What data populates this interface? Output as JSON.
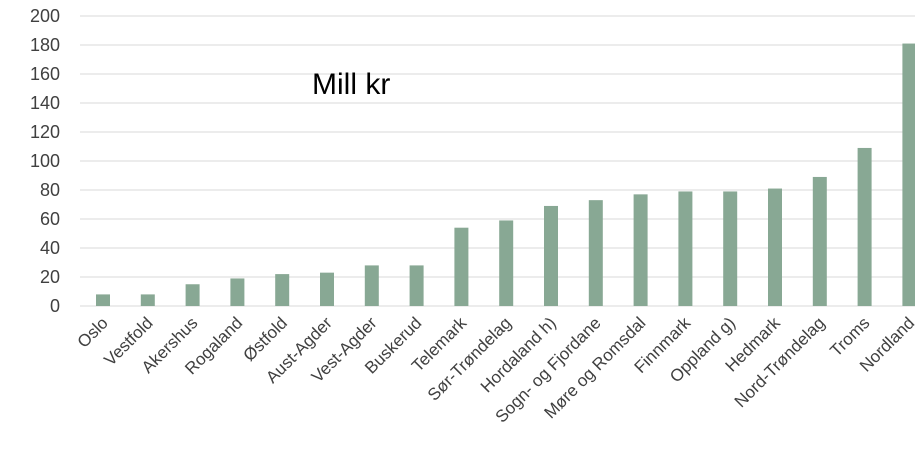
{
  "chart_data": {
    "type": "bar",
    "annotation": "Mill kr",
    "categories": [
      "Oslo",
      "Vestfold",
      "Akershus",
      "Rogaland",
      "Østfold",
      "Aust-Agder",
      "Vest-Agder",
      "Buskerud",
      "Telemark",
      "Sør-Trøndelag",
      "Hordaland h)",
      "Sogn- og Fjordane",
      "Møre og Romsdal",
      "Finnmark",
      "Oppland g)",
      "Hedmark",
      "Nord-Trøndelag",
      "Troms",
      "Nordland"
    ],
    "values": [
      8,
      8,
      15,
      19,
      22,
      23,
      28,
      28,
      54,
      59,
      69,
      73,
      77,
      79,
      79,
      81,
      89,
      109,
      181
    ],
    "yticks": [
      "0",
      "20",
      "40",
      "60",
      "80",
      "100",
      "120",
      "140",
      "160",
      "180",
      "200"
    ],
    "ylim": [
      0,
      200
    ],
    "grid": true,
    "legend": "none",
    "bar_color": "#88a894",
    "grid_color": "#d9d9d9"
  }
}
